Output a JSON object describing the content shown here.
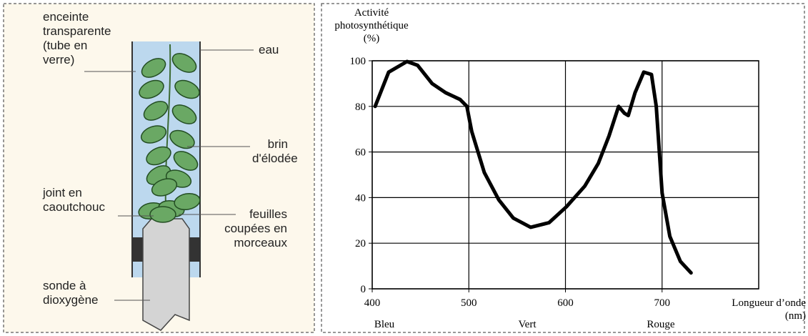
{
  "diagram": {
    "labels": [
      {
        "text": "enceinte\ntransparente\n(tube en\nverre)"
      },
      {
        "text": "eau"
      },
      {
        "text": "brin\nd'élodée"
      },
      {
        "text": "joint en\ncaoutchouc"
      },
      {
        "text": "feuilles\ncoupées en\nmorceaux"
      },
      {
        "text": "sonde à\ndioxygène"
      }
    ]
  },
  "chart_data": {
    "type": "line",
    "y_label": "Activité\nphotosynthétique\n(%)",
    "x_label": "Longueur d’onde\n(nm)",
    "color_labels": [
      "Bleu",
      "Vert",
      "Rouge"
    ],
    "x": [
      403,
      417,
      436,
      447,
      462,
      476,
      491,
      498,
      503,
      516,
      531,
      546,
      564,
      583,
      601,
      620,
      634,
      645,
      655,
      661,
      665,
      672,
      681,
      689,
      694,
      700,
      708,
      719,
      730
    ],
    "series": [
      {
        "color": "#000000",
        "values": [
          80,
          95,
          99.7,
          98,
          90,
          86,
          83,
          80,
          69,
          51,
          39,
          31,
          27,
          29,
          36,
          45,
          55,
          67,
          80,
          77,
          76,
          86,
          95,
          94,
          80,
          42,
          23,
          12,
          7
        ]
      }
    ],
    "xlim": [
      400,
      800
    ],
    "ylim": [
      0,
      100
    ],
    "xticks": [
      400,
      500,
      600,
      700
    ],
    "yticks": [
      0,
      20,
      40,
      60,
      80,
      100
    ],
    "grid": true
  }
}
